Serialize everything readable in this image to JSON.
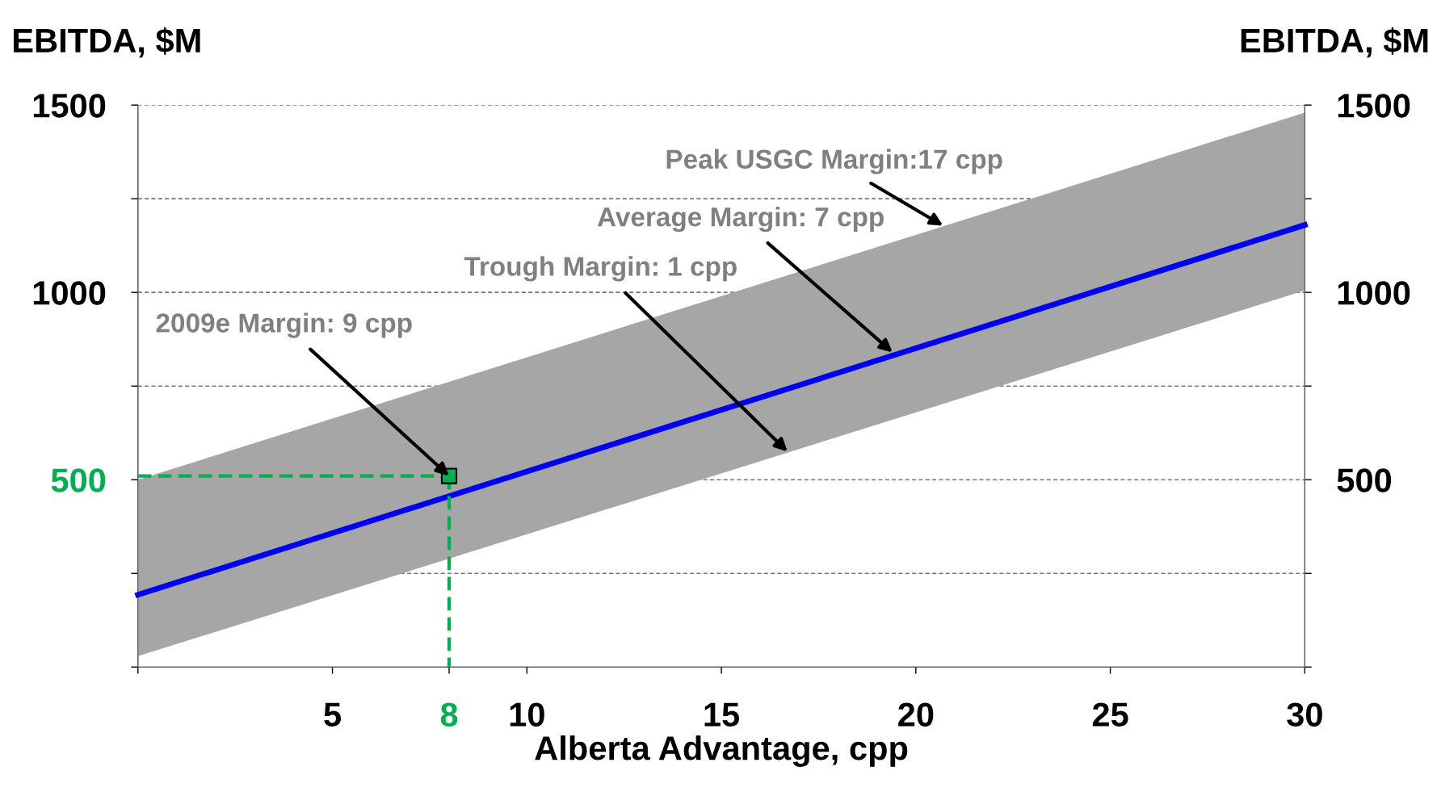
{
  "chart_data": {
    "type": "line",
    "xlabel": "Alberta Advantage, cpp",
    "ylabel": "EBITDA, $M",
    "y2label": "EBITDA, $M",
    "xlim": [
      0,
      30
    ],
    "ylim": [
      0,
      1500
    ],
    "y2lim": [
      0,
      1500
    ],
    "xticks": [
      {
        "value": 0,
        "label": null
      },
      5,
      8,
      10,
      15,
      20,
      25,
      30
    ],
    "yticks": [
      {
        "value": 0,
        "label": null
      },
      {
        "value": 250,
        "label": null
      },
      500,
      {
        "value": 750,
        "label": null
      },
      1000,
      {
        "value": 1250,
        "label": null
      },
      1500
    ],
    "y2ticks": [
      {
        "value": 0,
        "label": null
      },
      {
        "value": 250,
        "label": null
      },
      500,
      {
        "value": 750,
        "label": null
      },
      1000,
      {
        "value": 1250,
        "label": null
      },
      1500
    ],
    "grid": "y",
    "series": [
      {
        "color": "#0000ee",
        "x": [
          0,
          30
        ],
        "values": [
          193,
          1180
        ],
        "lower": [
          29,
          1005
        ],
        "upper": [
          500,
          1480
        ]
      },
      {
        "color": "#00b050",
        "x": [
          0,
          8
        ],
        "values": [
          510,
          510
        ],
        "line_style": "dashed"
      },
      {
        "color": "#00b050",
        "x": [
          8,
          8
        ],
        "values": [
          510,
          0
        ],
        "line_style": "dashed"
      },
      {
        "type": "scatter",
        "color": "#00b050",
        "x": [
          8
        ],
        "values": [
          510
        ],
        "marker": "square"
      }
    ],
    "annotations": [
      {
        "text": "Peak USGC Margin:17 cpp",
        "x": 20.7,
        "y": 1178
      },
      {
        "text": "Average Margin: 7 cpp",
        "x": 19.4,
        "y": 840
      },
      {
        "text": "Trough Margin: 1 cpp",
        "x": 16.7,
        "y": 575
      },
      {
        "text": "2009e Margin: 9 cpp",
        "x": 8,
        "y": 510
      }
    ]
  }
}
